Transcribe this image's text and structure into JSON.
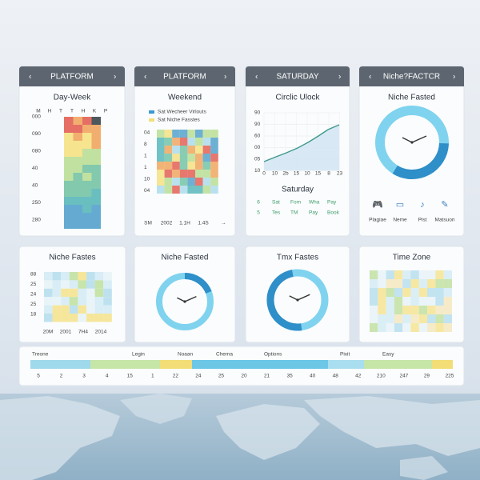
{
  "cards": [
    {
      "header": "PLATFORM",
      "title": "Day-Week",
      "columns": [
        "M",
        "H",
        "T",
        "T",
        "H",
        "K",
        "P"
      ],
      "y_labels": [
        "000",
        "090",
        "080",
        "40",
        "40",
        "250",
        "280"
      ]
    },
    {
      "header": "PLATFORM",
      "title": "Weekend",
      "legend": [
        "Sat Wecheer Virlouts",
        "Sat Niche Fasstes"
      ],
      "y_labels": [
        "04",
        "8",
        "1",
        "1",
        "10",
        "04"
      ],
      "x_labels": [
        "SM",
        "2002",
        "1.1H",
        "1.4S"
      ]
    },
    {
      "header": "SATURDAY",
      "title": "Circlic Ulock",
      "y_labels": [
        "90",
        "90",
        "60",
        "00",
        "05",
        "10"
      ],
      "x_labels": [
        "0",
        "10",
        "2b",
        "15",
        "10",
        "15",
        "8",
        "23"
      ],
      "subtitle": "Saturday",
      "actions": [
        [
          "6",
          "Sat",
          "Fom",
          "Wha",
          "Pay"
        ],
        [
          "5",
          "Tes",
          "TM",
          "Pay",
          "Book"
        ]
      ]
    },
    {
      "header": "Niche?FACTCR",
      "title": "Niche Fasted",
      "icons": [
        "Plagiae",
        "Neme",
        "Pist",
        "Matsuon"
      ]
    }
  ],
  "panels": [
    {
      "title": "Niche Fastes",
      "y_labels": [
        "88",
        "25",
        "24",
        "25",
        "18"
      ],
      "x_labels": [
        "20M",
        "2001",
        "7H4",
        "2014"
      ]
    },
    {
      "title": "Niche Fasted"
    },
    {
      "title": "Tmx Fastes"
    },
    {
      "title": "Time Zone"
    }
  ],
  "timeline": {
    "labels": [
      "Treone",
      "Legin",
      "Noaan",
      "Chema",
      "Options",
      "Pixit",
      "Easy"
    ],
    "ticks": [
      "5",
      "2",
      "3",
      "4",
      "15",
      "1",
      "22",
      "24",
      "25",
      "20",
      "21",
      "35",
      "40",
      "48",
      "42",
      "210",
      "247",
      "29",
      "225"
    ]
  }
}
